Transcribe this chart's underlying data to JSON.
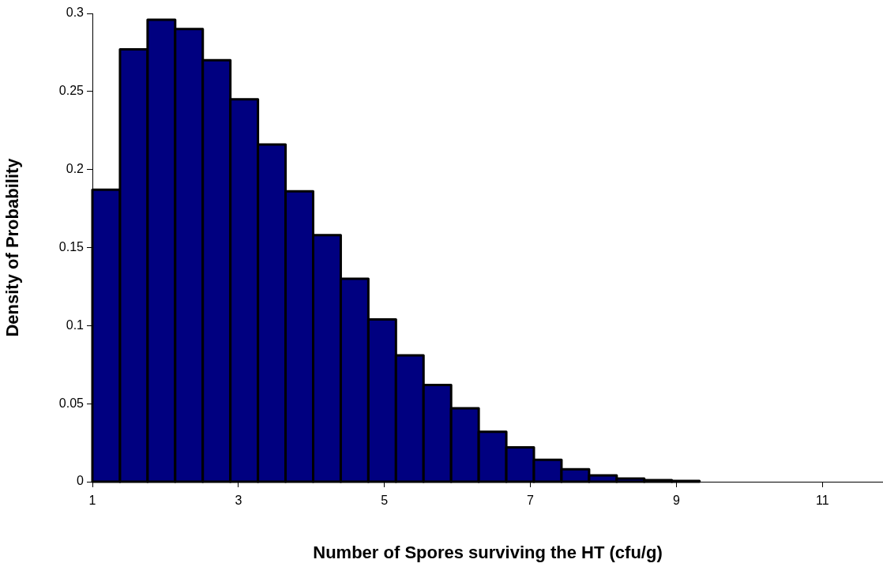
{
  "chart_data": {
    "type": "histogram",
    "xlabel": "Number of Spores surviving the HT (cfu/g)",
    "ylabel": "Density of Probability",
    "bins": [
      1,
      1.378,
      1.756,
      2.134,
      2.512,
      2.89,
      3.268,
      3.646,
      4.024,
      4.402,
      4.78,
      5.158,
      5.536,
      5.914,
      6.292,
      6.67,
      7.048,
      7.426,
      7.804,
      8.182,
      8.56,
      8.938,
      9.316
    ],
    "values": [
      0.187,
      0.277,
      0.296,
      0.29,
      0.27,
      0.245,
      0.216,
      0.186,
      0.158,
      0.13,
      0.104,
      0.081,
      0.062,
      0.047,
      0.032,
      0.022,
      0.014,
      0.008,
      0.004,
      0.002,
      0.001,
      0.0005
    ],
    "color": "#000080",
    "xlim": [
      1,
      11.83
    ],
    "xticks": [
      1,
      3,
      5,
      7,
      9,
      11
    ],
    "ylim": [
      0,
      0.3
    ],
    "yticks": [
      0,
      0.05,
      0.1,
      0.15,
      0.2,
      0.25,
      0.3
    ]
  }
}
